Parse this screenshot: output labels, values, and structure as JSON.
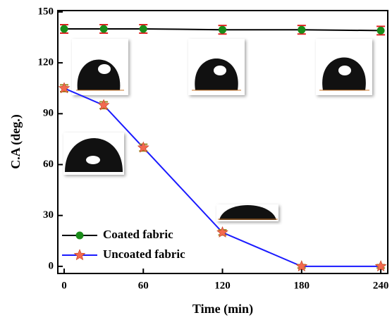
{
  "chart_data": {
    "type": "line",
    "xlabel": "Time (min)",
    "ylabel": "C.A (deg.)",
    "x": [
      0,
      30,
      60,
      120,
      180,
      240
    ],
    "series": [
      {
        "name": "Coated fabric",
        "color": "#000000",
        "marker": "circle",
        "marker_color": "#1a8c1a",
        "error_color": "#e02020",
        "values": [
          140,
          140,
          140,
          139.5,
          139.5,
          139
        ],
        "errors": [
          2.5,
          2.5,
          2.5,
          2.5,
          2.5,
          2.5
        ]
      },
      {
        "name": "Uncoated fabric",
        "color": "#1a1aff",
        "marker": "star",
        "marker_color": "#f26a4f",
        "error_color": "#9a8a20",
        "values": [
          105,
          95,
          70,
          20,
          0,
          0
        ],
        "errors": [
          2,
          2,
          2,
          1.5,
          1,
          1
        ]
      }
    ],
    "xlim": [
      -4.8,
      245.3
    ],
    "ylim": [
      -4.2,
      150.8
    ],
    "xticks": [
      0,
      60,
      120,
      180,
      240
    ],
    "yticks": [
      0,
      30,
      60,
      90,
      120,
      150
    ],
    "legend": "lower left",
    "grid": false
  }
}
